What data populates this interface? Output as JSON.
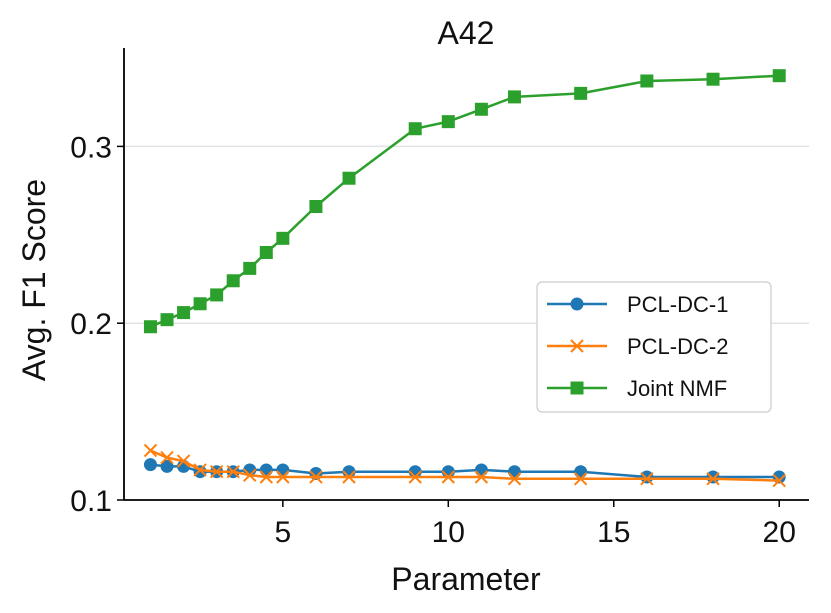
{
  "chart_data": {
    "type": "line",
    "title": "A42",
    "xlabel": "Parameter",
    "ylabel": "Avg. F1 Score",
    "xlim": [
      0.2,
      20.9
    ],
    "ylim": [
      0.1,
      0.35
    ],
    "xticks": [
      5,
      10,
      15,
      20
    ],
    "xtick_labels": [
      "5",
      "10",
      "15",
      "20"
    ],
    "yticks": [
      0.1,
      0.2,
      0.3
    ],
    "ytick_labels": [
      "0.1",
      "0.2",
      "0.3"
    ],
    "grid": "horizontal",
    "legend_position": "center-right",
    "x": [
      1,
      1.5,
      2,
      2.5,
      3,
      3.5,
      4,
      4.5,
      5,
      6,
      7,
      9,
      10,
      11,
      12,
      14,
      16,
      18,
      20
    ],
    "series": [
      {
        "name": "PCL-DC-1",
        "color": "#1f77b4",
        "marker": "circle",
        "values": [
          0.12,
          0.119,
          0.119,
          0.116,
          0.116,
          0.116,
          0.117,
          0.117,
          0.117,
          0.115,
          0.116,
          0.116,
          0.116,
          0.117,
          0.116,
          0.116,
          0.113,
          0.113,
          0.113
        ]
      },
      {
        "name": "PCL-DC-2",
        "color": "#ff7f0e",
        "marker": "x",
        "values": [
          0.128,
          0.124,
          0.122,
          0.117,
          0.116,
          0.116,
          0.114,
          0.113,
          0.113,
          0.113,
          0.113,
          0.113,
          0.113,
          0.113,
          0.112,
          0.112,
          0.112,
          0.112,
          0.111
        ]
      },
      {
        "name": "Joint NMF",
        "color": "#2ca02c",
        "marker": "square",
        "values": [
          0.198,
          0.202,
          0.206,
          0.211,
          0.216,
          0.224,
          0.231,
          0.24,
          0.248,
          0.266,
          0.282,
          0.31,
          0.314,
          0.321,
          0.328,
          0.33,
          0.337,
          0.338,
          0.34
        ]
      }
    ]
  }
}
